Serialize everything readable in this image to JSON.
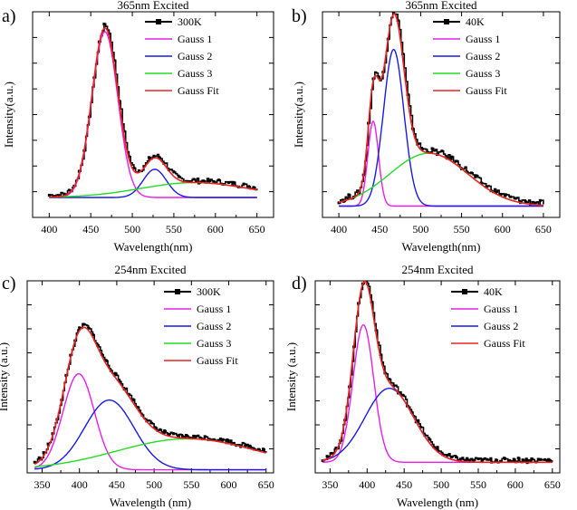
{
  "figure": {
    "colors": {
      "data": "#000000",
      "gauss1": "#e81ee8",
      "gauss2": "#1a1ae6",
      "gauss3": "#22dd22",
      "fit": "#ee2222"
    }
  },
  "chart_data": [
    {
      "panel": "a)",
      "type": "line",
      "title": "365nm Excited",
      "xlabel": "Wavelength(nm)",
      "ylabel": "Intensity(a.u.)",
      "xlim": [
        380,
        670
      ],
      "ylim": [
        -0.12,
        1.12
      ],
      "xticks": [
        400,
        450,
        500,
        550,
        600,
        650
      ],
      "xtick_labels": [
        "400",
        "450",
        "500",
        "550",
        "600",
        "650"
      ],
      "legend": [
        "300K",
        "Gauss 1",
        "Gauss 2",
        "Gauss 3",
        "Gauss Fit"
      ],
      "measured": {
        "name": "300K",
        "x_range": [
          400,
          650
        ],
        "marker": "square"
      },
      "series": [
        {
          "name": "Gauss 1",
          "center": 467,
          "sigma": 15.5,
          "amplitude": 1.0
        },
        {
          "name": "Gauss 2",
          "center": 527,
          "sigma": 14,
          "amplitude": 0.17
        },
        {
          "name": "Gauss 3",
          "center": 575,
          "sigma": 65,
          "amplitude": 0.09
        }
      ],
      "baseline": 0.0
    },
    {
      "panel": "b)",
      "type": "line",
      "title": "365nm Excited",
      "xlabel": "Wavelength(nm)",
      "ylabel": "Intensity(a.u.)",
      "xlim": [
        380,
        670
      ],
      "ylim": [
        -0.06,
        1.03
      ],
      "xticks": [
        400,
        450,
        500,
        550,
        600,
        650
      ],
      "xtick_labels": [
        "400",
        "450",
        "500",
        "550",
        "600",
        "650"
      ],
      "legend": [
        "40K",
        "Gauss 1",
        "Gauss 2",
        "Gauss 3",
        "Gauss Fit"
      ],
      "measured": {
        "name": "40K",
        "x_range": [
          400,
          650
        ],
        "marker": "square"
      },
      "series": [
        {
          "name": "Gauss 1",
          "center": 442,
          "sigma": 6.5,
          "amplitude": 0.45
        },
        {
          "name": "Gauss 2",
          "center": 467,
          "sigma": 12.5,
          "amplitude": 0.83
        },
        {
          "name": "Gauss 3",
          "center": 510,
          "sigma": 48,
          "amplitude": 0.28
        }
      ],
      "baseline": 0.0
    },
    {
      "panel": "c)",
      "type": "line",
      "title": "254nm Excited",
      "xlabel": "Wavelength (nm)",
      "ylabel": "Intensity (a.u.)",
      "xlim": [
        330,
        660
      ],
      "ylim": [
        -0.12,
        1.12
      ],
      "xticks": [
        350,
        400,
        450,
        500,
        550,
        600,
        650
      ],
      "xtick_labels": [
        "350",
        "400",
        "450",
        "500",
        "550",
        "600",
        "650"
      ],
      "legend": [
        "300K",
        "Gauss 1",
        "Gauss 2",
        "Gauss 3",
        "Gauss Fit"
      ],
      "measured": {
        "name": "300K",
        "x_range": [
          340,
          650
        ],
        "marker": "square"
      },
      "series": [
        {
          "name": "Gauss 1",
          "center": 399,
          "sigma": 21,
          "amplitude": 0.62
        },
        {
          "name": "Gauss 2",
          "center": 440,
          "sigma": 33,
          "amplitude": 0.45
        },
        {
          "name": "Gauss 3",
          "center": 545,
          "sigma": 95,
          "amplitude": 0.2
        }
      ],
      "baseline": -0.1
    },
    {
      "panel": "d)",
      "type": "line",
      "title": "254nm Excited",
      "xlabel": "Wavelength (nm)",
      "ylabel": "Intensity (a.u.)",
      "xlim": [
        330,
        660
      ],
      "ylim": [
        -0.06,
        1.03
      ],
      "xticks": [
        350,
        400,
        450,
        500,
        550,
        600,
        650
      ],
      "xtick_labels": [
        "350",
        "400",
        "450",
        "500",
        "550",
        "600",
        "650"
      ],
      "legend": [
        "40K",
        "Gauss 1",
        "Gauss 2",
        "Gauss Fit"
      ],
      "measured": {
        "name": "40K",
        "x_range": [
          340,
          650
        ],
        "marker": "square"
      },
      "series": [
        {
          "name": "Gauss 1",
          "center": 395,
          "sigma": 14,
          "amplitude": 0.78
        },
        {
          "name": "Gauss 2",
          "center": 430,
          "sigma": 33,
          "amplitude": 0.42
        }
      ],
      "baseline": 0.0
    }
  ]
}
